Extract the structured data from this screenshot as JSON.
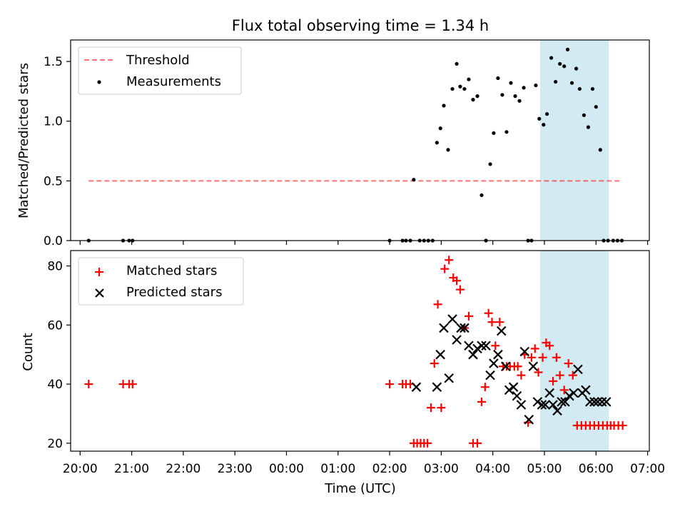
{
  "chart_data": [
    {
      "type": "scatter",
      "title": "Flux total observing time = 1.34 h",
      "xlabel": "",
      "ylabel": "Matched/Predicted stars",
      "xlim": [
        "19:49",
        "07:02"
      ],
      "ylim": [
        0,
        1.68
      ],
      "yticks": [
        0.0,
        0.5,
        1.0,
        1.5
      ],
      "ytick_labels": [
        "0.0",
        "0.5",
        "1.0",
        "1.5"
      ],
      "legend_position": "upper-left",
      "highlight_span": {
        "x0": "04:55",
        "x1": "06:15",
        "color": "#add8e6"
      },
      "threshold": {
        "name": "Threshold",
        "y": 0.5,
        "x0": "20:10",
        "x1": "06:30",
        "color": "#ff0000",
        "style": "dashed"
      },
      "series": [
        {
          "name": "Measurements",
          "marker": "dot",
          "color": "#000000",
          "x": [
            "20:10",
            "20:50",
            "20:57",
            "21:01",
            "02:00",
            "02:15",
            "02:19",
            "02:24",
            "02:28",
            "02:35",
            "02:40",
            "02:45",
            "02:50",
            "02:55",
            "02:59",
            "03:03",
            "03:08",
            "03:13",
            "03:18",
            "03:22",
            "03:27",
            "03:32",
            "03:37",
            "03:42",
            "03:47",
            "03:52",
            "03:57",
            "04:01",
            "04:06",
            "04:11",
            "04:16",
            "04:21",
            "04:26",
            "04:31",
            "04:36",
            "04:41",
            "04:45",
            "04:50",
            "04:54",
            "04:59",
            "05:03",
            "05:08",
            "05:13",
            "05:18",
            "05:23",
            "05:27",
            "05:32",
            "05:37",
            "05:41",
            "05:46",
            "05:51",
            "05:56",
            "06:00",
            "06:05",
            "06:09",
            "06:14",
            "06:20",
            "06:25",
            "06:30"
          ],
          "y": [
            0,
            0,
            0,
            0,
            0,
            0,
            0,
            0,
            0.51,
            0,
            0,
            0,
            0,
            0.82,
            0.94,
            1.13,
            0.76,
            1.27,
            1.48,
            1.29,
            1.27,
            1.35,
            1.18,
            1.21,
            0.38,
            0,
            0.64,
            0.9,
            1.36,
            1.22,
            0.91,
            1.32,
            1.21,
            1.17,
            1.28,
            0,
            0,
            1.3,
            1.02,
            0.97,
            1.06,
            1.53,
            1.33,
            1.48,
            1.46,
            1.6,
            1.32,
            1.44,
            1.27,
            1.05,
            0.95,
            1.27,
            1.12,
            0.76,
            0,
            0,
            0,
            0,
            0
          ]
        }
      ]
    },
    {
      "type": "scatter",
      "title": "",
      "xlabel": "Time (UTC)",
      "ylabel": "Count",
      "xlim": [
        "19:49",
        "07:02"
      ],
      "ylim": [
        17.3,
        85.2
      ],
      "yticks": [
        20,
        40,
        60,
        80
      ],
      "ytick_labels": [
        "20",
        "40",
        "60",
        "80"
      ],
      "xticks": [
        "20:00",
        "21:00",
        "22:00",
        "23:00",
        "00:00",
        "01:00",
        "02:00",
        "03:00",
        "04:00",
        "05:00",
        "06:00",
        "07:00"
      ],
      "legend_position": "upper-left",
      "highlight_span": {
        "x0": "04:55",
        "x1": "06:15",
        "color": "#add8e6"
      },
      "series": [
        {
          "name": "Matched stars",
          "marker": "plus",
          "color": "#ff0000",
          "x": [
            "20:10",
            "20:50",
            "20:57",
            "21:01",
            "02:00",
            "02:15",
            "02:19",
            "02:24",
            "02:28",
            "02:32",
            "02:36",
            "02:40",
            "02:44",
            "02:48",
            "02:52",
            "02:56",
            "03:00",
            "03:04",
            "03:09",
            "03:14",
            "03:18",
            "03:22",
            "03:27",
            "03:32",
            "03:37",
            "03:42",
            "03:47",
            "03:51",
            "03:55",
            "03:59",
            "04:03",
            "04:08",
            "04:12",
            "04:16",
            "04:20",
            "04:25",
            "04:29",
            "04:33",
            "04:37",
            "04:41",
            "04:45",
            "04:49",
            "04:53",
            "04:58",
            "05:02",
            "05:06",
            "05:10",
            "05:14",
            "05:18",
            "05:23",
            "05:28",
            "05:33",
            "05:38",
            "05:43",
            "05:48",
            "05:53",
            "05:58",
            "06:03",
            "06:08",
            "06:13",
            "06:17",
            "06:21",
            "06:26",
            "06:31"
          ],
          "y": [
            40,
            40,
            40,
            40,
            40,
            40,
            40,
            40,
            20,
            20,
            20,
            20,
            20,
            32,
            47,
            67,
            32,
            79,
            82,
            76,
            75,
            72,
            59,
            63,
            20,
            20,
            34,
            39,
            64,
            61,
            53,
            61,
            46,
            46,
            46,
            46,
            46,
            43,
            50,
            27,
            49,
            52,
            44,
            49,
            54,
            53,
            41,
            49,
            43,
            38,
            47,
            43,
            26,
            26,
            26,
            26,
            26,
            26,
            26,
            26,
            26,
            26,
            26,
            26
          ]
        },
        {
          "name": "Predicted stars",
          "marker": "x",
          "color": "#000000",
          "x": [
            "02:31",
            "02:55",
            "02:59",
            "03:03",
            "03:09",
            "03:13",
            "03:18",
            "03:23",
            "03:27",
            "03:32",
            "03:37",
            "03:42",
            "03:47",
            "03:52",
            "03:57",
            "04:01",
            "04:06",
            "04:10",
            "04:15",
            "04:19",
            "04:24",
            "04:28",
            "04:33",
            "04:37",
            "04:42",
            "04:47",
            "04:52",
            "04:57",
            "05:01",
            "05:06",
            "05:10",
            "05:15",
            "05:20",
            "05:24",
            "05:29",
            "05:34",
            "05:39",
            "05:44",
            "05:48",
            "05:53",
            "05:58",
            "06:02",
            "06:07",
            "06:12"
          ],
          "y": [
            39,
            39,
            50,
            59,
            42,
            62,
            55,
            59,
            59,
            53,
            50,
            52,
            53,
            53,
            43,
            47,
            50,
            58,
            46,
            38,
            39,
            36,
            33,
            51,
            28,
            46,
            34,
            33,
            33,
            37,
            33,
            31,
            34,
            34,
            36,
            37,
            45,
            37,
            38,
            34,
            34,
            34,
            34,
            34
          ]
        }
      ]
    }
  ]
}
